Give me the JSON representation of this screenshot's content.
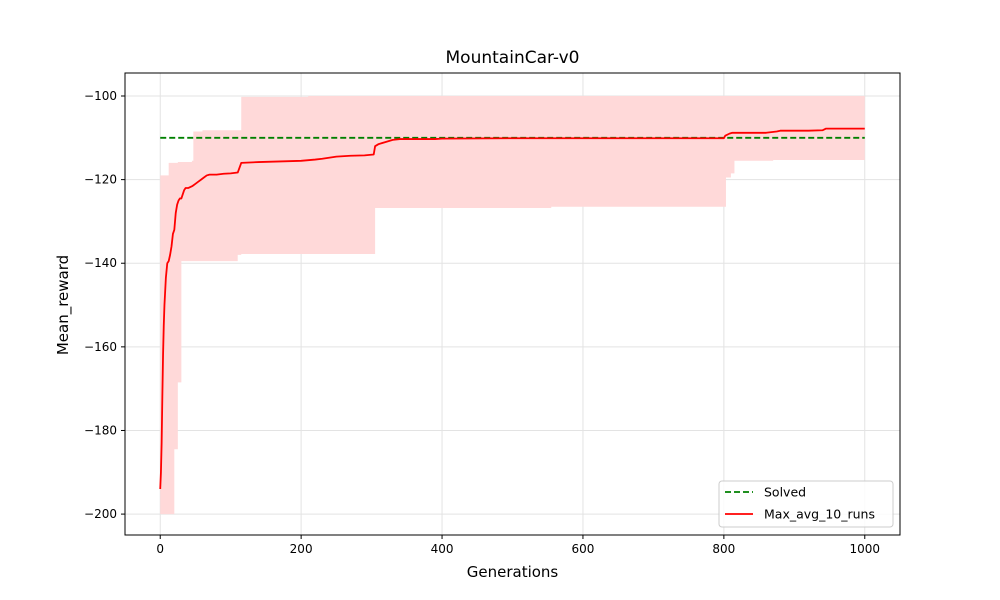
{
  "chart_data": {
    "type": "line",
    "title": "MountainCar-v0",
    "xlabel": "Generations",
    "ylabel": "Mean_reward",
    "xlim": [
      -50,
      1050
    ],
    "ylim": [
      -205,
      -94.5
    ],
    "x_ticks": [
      0,
      200,
      400,
      600,
      800,
      1000
    ],
    "y_ticks": [
      -200,
      -180,
      -160,
      -140,
      -120,
      -100
    ],
    "grid": true,
    "legend_position": "lower-right",
    "colors": {
      "solved": "#008000",
      "max_avg": "#ff0000",
      "band": "#ffd9d9",
      "grid": "#e3e3e3"
    },
    "series": [
      {
        "name": "Solved",
        "style": "dashed",
        "x": [
          0,
          1000
        ],
        "values": [
          -110,
          -110
        ]
      },
      {
        "name": "Max_avg_10_runs",
        "style": "solid",
        "x": [
          0,
          1,
          2,
          3,
          4,
          5,
          6,
          8,
          10,
          12,
          14,
          16,
          18,
          20,
          22,
          24,
          26,
          28,
          30,
          34,
          36,
          40,
          46,
          50,
          54,
          58,
          62,
          66,
          70,
          80,
          90,
          100,
          110,
          115,
          140,
          200,
          220,
          230,
          250,
          270,
          290,
          303,
          305,
          310,
          320,
          330,
          340,
          360,
          390,
          400,
          500,
          600,
          700,
          800,
          802,
          808,
          812,
          860,
          875,
          880,
          920,
          940,
          945,
          1000
        ],
        "values": [
          -194,
          -190,
          -183,
          -172,
          -162,
          -155,
          -150,
          -143.5,
          -140,
          -139.5,
          -138,
          -136,
          -133,
          -132,
          -128,
          -126,
          -125,
          -124.5,
          -124.5,
          -122.5,
          -122,
          -122,
          -121.5,
          -121,
          -120.5,
          -120,
          -119.5,
          -119,
          -118.8,
          -118.8,
          -118.6,
          -118.5,
          -118.3,
          -116,
          -115.8,
          -115.5,
          -115.2,
          -115,
          -114.5,
          -114.3,
          -114.2,
          -114,
          -112,
          -111.5,
          -111,
          -110.5,
          -110.3,
          -110.3,
          -110.3,
          -110.2,
          -110.1,
          -110.1,
          -110.1,
          -110.1,
          -109.5,
          -109,
          -108.8,
          -108.8,
          -108.5,
          -108.3,
          -108.3,
          -108.2,
          -107.8,
          -107.8
        ]
      }
    ],
    "band": {
      "x": [
        0,
        8,
        12,
        16,
        18,
        20,
        24,
        25,
        30,
        45,
        47,
        50,
        60,
        105,
        110,
        115,
        200,
        210,
        300,
        303,
        305,
        400,
        500,
        550,
        555,
        800,
        803,
        805,
        810,
        815,
        860,
        870,
        880,
        1000
      ],
      "upper": [
        -119,
        -119,
        -116,
        -116,
        -116,
        -116,
        -116,
        -115.8,
        -115.8,
        -115.5,
        -108.5,
        -108.5,
        -108.2,
        -108.2,
        -108.2,
        -100.2,
        -100.2,
        -100,
        -100,
        -100,
        -100,
        -100,
        -100,
        -100,
        -100,
        -100,
        -100,
        -100,
        -100,
        -100,
        -100,
        -100,
        -100,
        -100
      ],
      "lower": [
        -200,
        -200,
        -200,
        -200,
        -200,
        -184.5,
        -184.5,
        -168.5,
        -139.5,
        -139.5,
        -139.5,
        -139.5,
        -139.5,
        -139.5,
        -138,
        -137.8,
        -137.8,
        -137.8,
        -137.8,
        -137.8,
        -126.8,
        -126.8,
        -126.8,
        -126.8,
        -126.5,
        -126.5,
        -119.5,
        -119.5,
        -118.5,
        -115.5,
        -115.5,
        -115.3,
        -115.3,
        -115.3
      ]
    },
    "legend": [
      "Solved",
      "Max_avg_10_runs"
    ]
  }
}
